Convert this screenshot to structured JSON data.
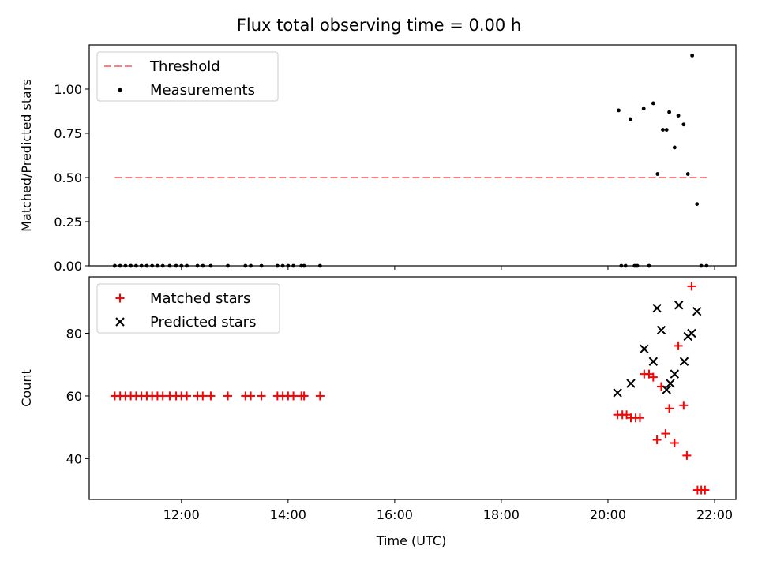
{
  "chart_data": {
    "title": "Flux total observing time = 0.00 h",
    "xlabel": "Time (UTC)",
    "x_ticks": [
      "12:00",
      "14:00",
      "16:00",
      "18:00",
      "20:00",
      "22:00"
    ],
    "x_tick_hours": [
      12,
      14,
      16,
      18,
      20,
      22
    ],
    "xlim_hours": [
      10.27,
      22.4
    ],
    "panels": [
      {
        "type": "scatter",
        "ylabel": "Matched/Predicted stars",
        "ylim": [
          0,
          1.25
        ],
        "y_ticks": [
          "0.00",
          "0.25",
          "0.50",
          "0.75",
          "1.00"
        ],
        "y_tick_values": [
          0,
          0.25,
          0.5,
          0.75,
          1.0
        ],
        "legend_position": "upper-left",
        "series": [
          {
            "name": "Threshold",
            "kind": "dashed-line",
            "color": "#ff7f7f",
            "x_hours": [
              10.75,
              21.85
            ],
            "y": [
              0.5,
              0.5
            ]
          },
          {
            "name": "Measurements",
            "kind": "dot",
            "color": "#000000",
            "points": [
              [
                10.75,
                0
              ],
              [
                10.85,
                0
              ],
              [
                10.95,
                0
              ],
              [
                11.05,
                0
              ],
              [
                11.15,
                0
              ],
              [
                11.25,
                0
              ],
              [
                11.35,
                0
              ],
              [
                11.45,
                0
              ],
              [
                11.55,
                0
              ],
              [
                11.65,
                0
              ],
              [
                11.78,
                0
              ],
              [
                11.9,
                0
              ],
              [
                12.0,
                0
              ],
              [
                12.1,
                0
              ],
              [
                12.3,
                0
              ],
              [
                12.4,
                0
              ],
              [
                12.55,
                0
              ],
              [
                12.87,
                0
              ],
              [
                13.2,
                0
              ],
              [
                13.3,
                0
              ],
              [
                13.5,
                0
              ],
              [
                13.8,
                0
              ],
              [
                13.9,
                0
              ],
              [
                14.0,
                0
              ],
              [
                14.1,
                0
              ],
              [
                14.25,
                0
              ],
              [
                14.3,
                0
              ],
              [
                14.6,
                0
              ],
              [
                20.2,
                0.88
              ],
              [
                20.42,
                0.83
              ],
              [
                20.67,
                0.89
              ],
              [
                20.85,
                0.92
              ],
              [
                20.93,
                0.52
              ],
              [
                21.03,
                0.77
              ],
              [
                21.1,
                0.77
              ],
              [
                21.15,
                0.87
              ],
              [
                21.25,
                0.67
              ],
              [
                21.32,
                0.85
              ],
              [
                21.42,
                0.8
              ],
              [
                21.5,
                0.52
              ],
              [
                21.58,
                1.19
              ],
              [
                21.67,
                0.35
              ],
              [
                20.25,
                0
              ],
              [
                20.33,
                0
              ],
              [
                20.5,
                0
              ],
              [
                20.55,
                0
              ],
              [
                20.77,
                0
              ],
              [
                21.75,
                0
              ],
              [
                21.85,
                0
              ]
            ]
          }
        ]
      },
      {
        "type": "scatter",
        "ylabel": "Count",
        "ylim": [
          27,
          98
        ],
        "y_ticks": [
          "40",
          "60",
          "80"
        ],
        "y_tick_values": [
          40,
          60,
          80
        ],
        "legend_position": "upper-left",
        "series": [
          {
            "name": "Matched stars",
            "kind": "plus",
            "color": "#ff0000",
            "points": [
              [
                10.75,
                60
              ],
              [
                10.85,
                60
              ],
              [
                10.95,
                60
              ],
              [
                11.05,
                60
              ],
              [
                11.15,
                60
              ],
              [
                11.25,
                60
              ],
              [
                11.35,
                60
              ],
              [
                11.45,
                60
              ],
              [
                11.55,
                60
              ],
              [
                11.65,
                60
              ],
              [
                11.78,
                60
              ],
              [
                11.9,
                60
              ],
              [
                12.0,
                60
              ],
              [
                12.1,
                60
              ],
              [
                12.3,
                60
              ],
              [
                12.4,
                60
              ],
              [
                12.55,
                60
              ],
              [
                12.87,
                60
              ],
              [
                13.2,
                60
              ],
              [
                13.3,
                60
              ],
              [
                13.5,
                60
              ],
              [
                13.8,
                60
              ],
              [
                13.9,
                60
              ],
              [
                14.0,
                60
              ],
              [
                14.1,
                60
              ],
              [
                14.25,
                60
              ],
              [
                14.3,
                60
              ],
              [
                14.6,
                60
              ],
              [
                20.18,
                54
              ],
              [
                20.27,
                54
              ],
              [
                20.35,
                54
              ],
              [
                20.43,
                53
              ],
              [
                20.52,
                53
              ],
              [
                20.6,
                53
              ],
              [
                20.68,
                67
              ],
              [
                20.77,
                67
              ],
              [
                20.85,
                66
              ],
              [
                20.92,
                46
              ],
              [
                21.0,
                63
              ],
              [
                21.08,
                48
              ],
              [
                21.15,
                56
              ],
              [
                21.25,
                45
              ],
              [
                21.32,
                76
              ],
              [
                21.42,
                57
              ],
              [
                21.48,
                41
              ],
              [
                21.57,
                95
              ],
              [
                21.68,
                30
              ],
              [
                21.75,
                30
              ],
              [
                21.82,
                30
              ]
            ]
          },
          {
            "name": "Predicted stars",
            "kind": "x",
            "color": "#000000",
            "points": [
              [
                20.18,
                61
              ],
              [
                20.43,
                64
              ],
              [
                20.68,
                75
              ],
              [
                20.85,
                71
              ],
              [
                20.92,
                88
              ],
              [
                21.0,
                81
              ],
              [
                21.1,
                62
              ],
              [
                21.17,
                64
              ],
              [
                21.25,
                67
              ],
              [
                21.33,
                89
              ],
              [
                21.43,
                71
              ],
              [
                21.5,
                79
              ],
              [
                21.57,
                80
              ],
              [
                21.67,
                87
              ]
            ]
          }
        ]
      }
    ]
  }
}
